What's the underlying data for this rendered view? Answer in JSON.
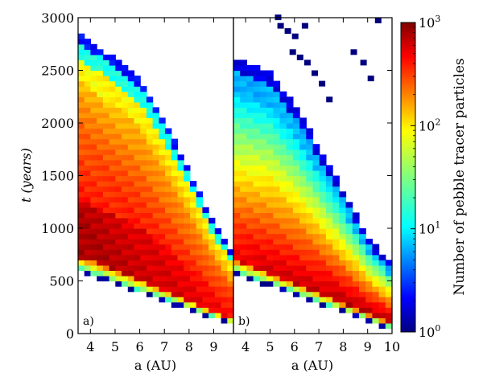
{
  "chart_data": {
    "type": "heatmap",
    "ylabel": "t (years)",
    "yticks": [
      0,
      500,
      1000,
      1500,
      2000,
      2500,
      3000
    ],
    "ylim": [
      0,
      3000
    ],
    "colorbar": {
      "label": "Number of pebble tracer particles",
      "scale": "log",
      "range": [
        1,
        1000
      ],
      "ticks": [
        "10^0",
        "10^1",
        "10^2",
        "10^3"
      ],
      "colormap": "jet"
    },
    "panels": [
      {
        "panel_label": "a)",
        "xlabel": "a (AU)",
        "xlim": [
          3.5,
          9.8
        ],
        "xticks": [
          4,
          5,
          6,
          7,
          8,
          9
        ],
        "description_values": {
          "lower_edge_t": [
            [
              3.5,
              620
            ],
            [
              9.8,
              100
            ]
          ],
          "upper_edge_t": [
            [
              3.5,
              2850
            ],
            [
              6.0,
              2400
            ],
            [
              7.0,
              2000
            ],
            [
              8.0,
              1530
            ],
            [
              9.0,
              1020
            ],
            [
              9.8,
              700
            ]
          ],
          "peak_log10_count": 2.9
        }
      },
      {
        "panel_label": "b)",
        "xlabel": "a (AU)",
        "xlim": [
          3.5,
          10.0
        ],
        "xticks": [
          4,
          5,
          6,
          7,
          8,
          9,
          10
        ],
        "description_values": {
          "lower_edge_t": [
            [
              3.5,
              600
            ],
            [
              10.0,
              60
            ]
          ],
          "upper_edge_t": [
            [
              3.5,
              2600
            ],
            [
              5.0,
              2450
            ],
            [
              6.0,
              2150
            ],
            [
              7.0,
              1750
            ],
            [
              8.0,
              1330
            ],
            [
              9.0,
              900
            ],
            [
              10.0,
              620
            ]
          ],
          "peak_log10_count": 2.9
        }
      }
    ]
  }
}
